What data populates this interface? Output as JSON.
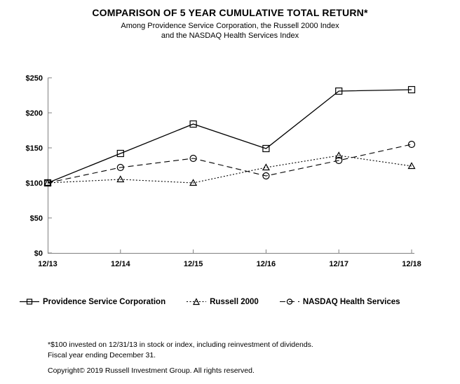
{
  "chart_data": {
    "type": "line",
    "title": "COMPARISON OF 5 YEAR CUMULATIVE TOTAL RETURN*",
    "subtitle_line1": "Among Providence Service Corporation, the Russell 2000 Index",
    "subtitle_line2": "and the NASDAQ Health Services Index",
    "categories": [
      "12/13",
      "12/14",
      "12/15",
      "12/16",
      "12/17",
      "12/18"
    ],
    "y_ticks": [
      {
        "value": 0,
        "label": "$0"
      },
      {
        "value": 50,
        "label": "$50"
      },
      {
        "value": 100,
        "label": "$100"
      },
      {
        "value": 150,
        "label": "$150"
      },
      {
        "value": 200,
        "label": "$200"
      },
      {
        "value": 250,
        "label": "$250"
      }
    ],
    "ylim": [
      0,
      250
    ],
    "grid": false,
    "legend_position": "bottom",
    "series": [
      {
        "name": "Providence Service Corporation",
        "marker": "square",
        "line_style": "solid",
        "values": [
          100,
          142,
          184,
          149,
          231,
          233
        ]
      },
      {
        "name": "Russell 2000",
        "marker": "triangle",
        "line_style": "dotted",
        "values": [
          100,
          105,
          100,
          122,
          139,
          124
        ]
      },
      {
        "name": "NASDAQ Health Services",
        "marker": "circle",
        "line_style": "dashed",
        "values": [
          100,
          122,
          135,
          110,
          132,
          155
        ]
      }
    ]
  },
  "footnotes": {
    "line1": "*$100 invested on 12/31/13 in stock or index, including reinvestment of dividends.",
    "line2": "Fiscal year ending December 31.",
    "copyright": "Copyright© 2019 Russell Investment Group. All rights reserved."
  },
  "colors": {
    "series_line": "#000000",
    "axis": "#808080",
    "text": "#000000",
    "background": "#ffffff"
  }
}
